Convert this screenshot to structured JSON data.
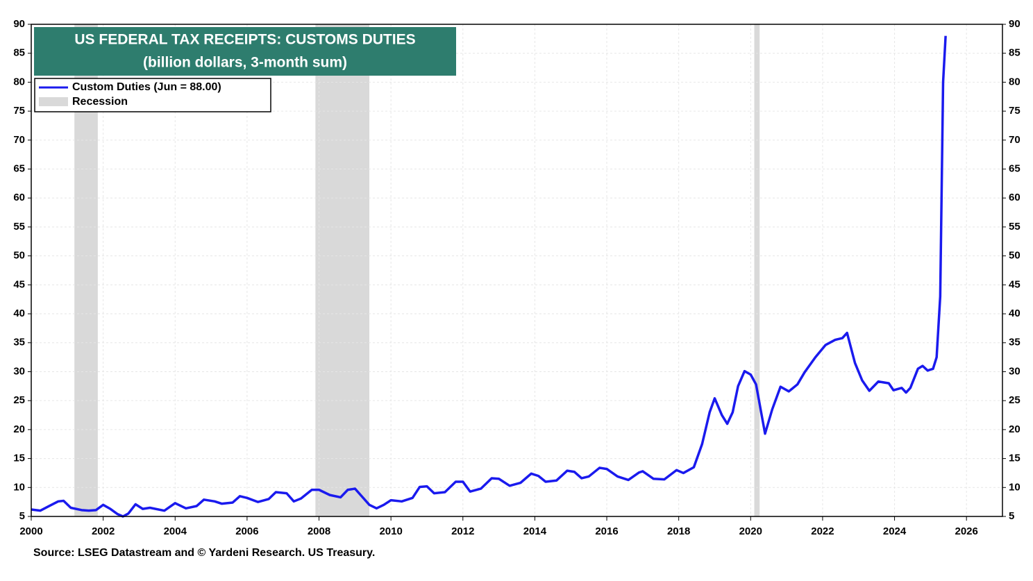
{
  "chart_data": {
    "type": "line",
    "title": "US FEDERAL TAX RECEIPTS: CUSTOMS DUTIES",
    "subtitle": "(billion dollars, 3-month sum)",
    "source": "Source: LSEG Datastream and © Yardeni Research. US Treasury.",
    "xlim": [
      2000,
      2027
    ],
    "xticks": [
      2000,
      2002,
      2004,
      2006,
      2008,
      2010,
      2012,
      2014,
      2016,
      2018,
      2020,
      2022,
      2024,
      2026
    ],
    "ylim": [
      5,
      90
    ],
    "yticks": [
      5,
      10,
      15,
      20,
      25,
      30,
      35,
      40,
      45,
      50,
      55,
      60,
      65,
      70,
      75,
      80,
      85,
      90
    ],
    "grid": true,
    "legend": "upper left",
    "recession": {
      "name": "Recession",
      "color": "#d9d9d9",
      "periods": [
        [
          2001.2,
          2001.85
        ],
        [
          2007.9,
          2009.4
        ],
        [
          2020.1,
          2020.25
        ]
      ]
    },
    "series": [
      {
        "name": "Custom Duties (Jun = 88.00)",
        "color": "#1a1aee",
        "x": [
          2000.0,
          2000.25,
          2000.5,
          2000.75,
          2000.9,
          2001.1,
          2001.4,
          2001.6,
          2001.8,
          2002.0,
          2002.2,
          2002.4,
          2002.55,
          2002.7,
          2002.9,
          2003.1,
          2003.3,
          2003.7,
          2004.0,
          2004.3,
          2004.6,
          2004.8,
          2005.1,
          2005.3,
          2005.6,
          2005.8,
          2006.0,
          2006.3,
          2006.6,
          2006.8,
          2007.1,
          2007.3,
          2007.5,
          2007.8,
          2008.0,
          2008.3,
          2008.6,
          2008.8,
          2009.0,
          2009.2,
          2009.4,
          2009.6,
          2009.8,
          2010.0,
          2010.3,
          2010.6,
          2010.8,
          2011.0,
          2011.2,
          2011.5,
          2011.8,
          2012.0,
          2012.2,
          2012.5,
          2012.8,
          2013.0,
          2013.3,
          2013.6,
          2013.9,
          2014.1,
          2014.3,
          2014.6,
          2014.9,
          2015.1,
          2015.3,
          2015.5,
          2015.8,
          2016.0,
          2016.3,
          2016.6,
          2016.9,
          2017.0,
          2017.3,
          2017.6,
          2017.94,
          2018.13,
          2018.42,
          2018.65,
          2018.86,
          2019.0,
          2019.2,
          2019.35,
          2019.5,
          2019.65,
          2019.83,
          2020.0,
          2020.15,
          2020.4,
          2020.6,
          2020.83,
          2021.06,
          2021.3,
          2021.5,
          2021.8,
          2022.08,
          2022.35,
          2022.55,
          2022.68,
          2022.9,
          2023.1,
          2023.3,
          2023.55,
          2023.84,
          2023.97,
          2024.2,
          2024.32,
          2024.44,
          2024.65,
          2024.78,
          2024.92,
          2025.07,
          2025.17,
          2025.27,
          2025.35,
          2025.42
        ],
        "values": [
          6.2,
          6.0,
          6.8,
          7.6,
          7.7,
          6.5,
          6.1,
          6.0,
          6.1,
          7.0,
          6.3,
          5.4,
          5.0,
          5.5,
          7.1,
          6.3,
          6.5,
          6.0,
          7.3,
          6.4,
          6.8,
          7.9,
          7.6,
          7.2,
          7.4,
          8.5,
          8.2,
          7.5,
          8.0,
          9.2,
          9.0,
          7.6,
          8.1,
          9.6,
          9.6,
          8.7,
          8.3,
          9.6,
          9.8,
          8.4,
          7.0,
          6.4,
          7.0,
          7.8,
          7.6,
          8.2,
          10.1,
          10.2,
          9.0,
          9.2,
          11.0,
          11.0,
          9.3,
          9.8,
          11.6,
          11.5,
          10.3,
          10.8,
          12.4,
          12.0,
          11.0,
          11.2,
          12.9,
          12.7,
          11.6,
          11.9,
          13.4,
          13.2,
          11.9,
          11.3,
          12.6,
          12.8,
          11.5,
          11.4,
          13.0,
          12.5,
          13.5,
          17.5,
          23.0,
          25.4,
          22.5,
          21.0,
          23.0,
          27.5,
          30.1,
          29.5,
          27.8,
          19.3,
          23.5,
          27.4,
          26.6,
          27.8,
          29.9,
          32.5,
          34.6,
          35.5,
          35.8,
          36.7,
          31.5,
          28.5,
          26.7,
          28.3,
          28.0,
          26.8,
          27.2,
          26.4,
          27.2,
          30.5,
          31.0,
          30.2,
          30.5,
          32.5,
          43.0,
          80.0,
          88.0
        ]
      }
    ]
  }
}
